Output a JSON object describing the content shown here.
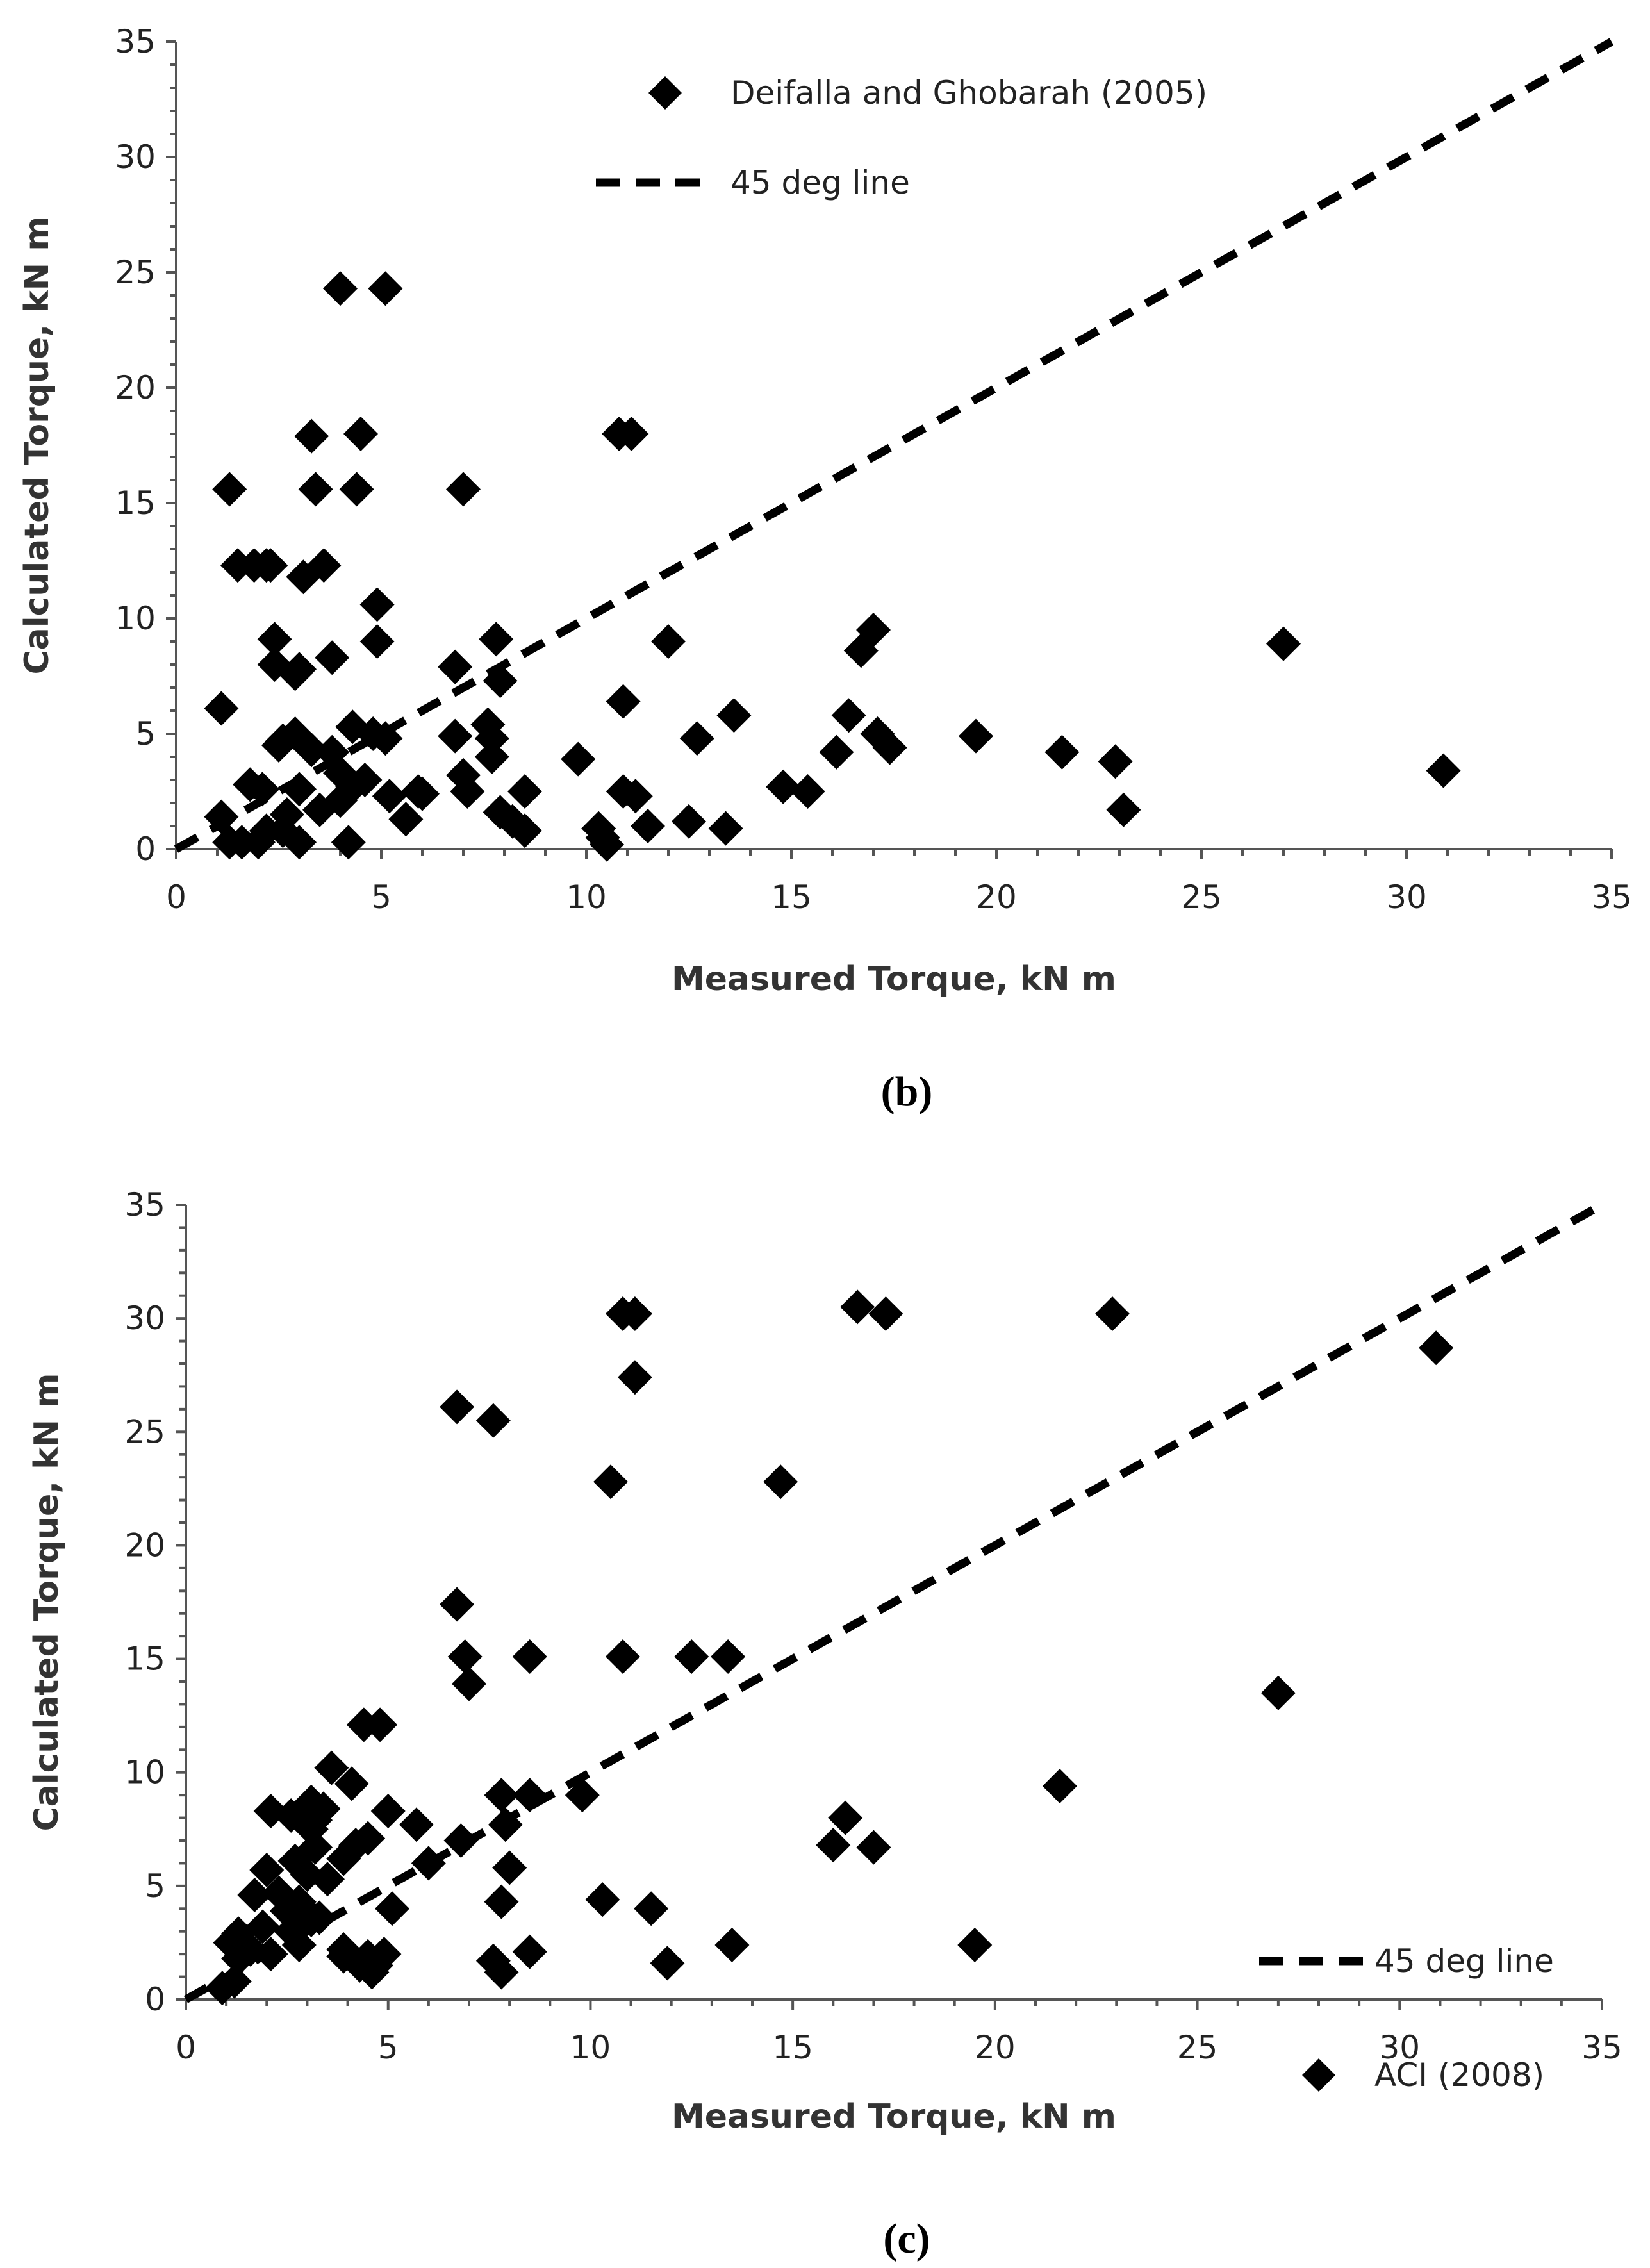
{
  "chart_data": [
    {
      "type": "scatter",
      "caption": "(b)",
      "title": "",
      "xlabel": "Measured Torque, kN m",
      "ylabel": "Calculated Torque, kN m",
      "xlim": [
        0,
        35
      ],
      "ylim": [
        0,
        35
      ],
      "x_ticks": [
        0,
        5,
        10,
        15,
        20,
        25,
        30,
        35
      ],
      "y_ticks": [
        0,
        5,
        10,
        15,
        20,
        25,
        30,
        35
      ],
      "legend_position": "top-center",
      "reference_line": {
        "name": "45 deg line",
        "x": [
          0,
          35
        ],
        "y": [
          0,
          35
        ]
      },
      "series": [
        {
          "name": "Deifalla and Ghobarah (2005)",
          "marker": "diamond",
          "x": [
            4.0,
            5.1,
            3.3,
            4.5,
            10.8,
            11.1,
            1.3,
            3.4,
            4.4,
            7.0,
            1.5,
            1.9,
            2.2,
            2.3,
            3.6,
            3.1,
            4.9,
            2.4,
            2.4,
            4.9,
            3.8,
            2.9,
            3.0,
            6.8,
            7.8,
            7.9,
            1.1,
            4.3,
            2.6,
            2.9,
            3.3,
            3.8,
            4.0,
            4.8,
            5.1,
            2.5,
            7.6,
            7.7,
            7.7,
            6.8,
            7.0,
            9.8,
            12.0,
            10.9,
            12.7,
            13.6,
            16.4,
            16.7,
            17.0,
            17.1,
            17.4,
            19.5,
            21.6,
            22.9,
            27.0,
            30.9,
            1.1,
            1.8,
            2.1,
            3.0,
            4.0,
            4.3,
            4.6,
            5.2,
            5.9,
            7.1,
            8.5,
            16.1,
            1.6,
            2.2,
            2.7,
            3.5,
            5.6,
            6.0,
            7.9,
            10.9,
            11.2,
            14.8,
            15.4,
            23.1,
            1.3,
            2.0,
            2.6,
            3.0,
            4.2,
            8.2,
            8.5,
            10.3,
            10.4,
            11.5,
            12.5,
            13.4,
            10.5
          ],
          "y": [
            24.3,
            24.3,
            17.9,
            18.0,
            18.0,
            18.0,
            15.6,
            15.6,
            15.6,
            15.6,
            12.3,
            12.3,
            12.3,
            12.3,
            12.3,
            11.8,
            10.6,
            9.1,
            8.0,
            9.0,
            8.3,
            7.6,
            7.8,
            7.9,
            9.1,
            7.3,
            1.4,
            5.3,
            4.7,
            5.0,
            4.3,
            4.2,
            3.3,
            5.0,
            4.8,
            4.5,
            5.4,
            4.8,
            4.0,
            4.9,
            3.2,
            3.9,
            9.0,
            6.4,
            4.8,
            5.8,
            5.8,
            8.6,
            9.5,
            5.0,
            4.4,
            4.9,
            4.2,
            3.8,
            8.9,
            3.4,
            6.1,
            2.8,
            2.6,
            2.6,
            2.1,
            2.7,
            3.0,
            2.3,
            2.5,
            2.5,
            2.5,
            4.2,
            0.3,
            0.8,
            1.5,
            1.7,
            1.3,
            2.4,
            1.6,
            2.5,
            2.3,
            2.7,
            2.5,
            1.7,
            0.3,
            0.3,
            0.8,
            0.3,
            0.3,
            1.2,
            0.8,
            0.9,
            0.5,
            1.0,
            1.2,
            0.9,
            0.2
          ]
        }
      ]
    },
    {
      "type": "scatter",
      "caption": "(c)",
      "title": "",
      "xlabel": "Measured Torque, kN m",
      "ylabel": "Calculated Torque, kN m",
      "xlim": [
        0,
        35
      ],
      "ylim": [
        0,
        35
      ],
      "x_ticks": [
        0,
        5,
        10,
        15,
        20,
        25,
        30,
        35
      ],
      "y_ticks": [
        0,
        5,
        10,
        15,
        20,
        25,
        30,
        35
      ],
      "legend_position": "bottom-right",
      "reference_line": {
        "name": "45 deg line",
        "x": [
          0,
          35
        ],
        "y": [
          0,
          35
        ]
      },
      "series": [
        {
          "name": "ACI (2008)",
          "marker": "diamond",
          "x": [
            10.8,
            11.1,
            16.6,
            17.3,
            22.9,
            30.9,
            6.7,
            7.6,
            11.1,
            10.5,
            14.7,
            6.7,
            6.9,
            7.0,
            8.5,
            10.8,
            12.5,
            13.4,
            27.0,
            4.4,
            4.8,
            3.6,
            4.1,
            3.1,
            3.4,
            2.1,
            2.6,
            2.9,
            3.2,
            3.1,
            5.0,
            5.7,
            6.0,
            6.8,
            7.9,
            8.5,
            9.8,
            3.2,
            3.9,
            4.2,
            4.5,
            2.7,
            3.0,
            3.5,
            2.0,
            2.3,
            2.8,
            1.7,
            2.5,
            3.1,
            1.3,
            1.9,
            2.6,
            16.3,
            16.0,
            17.0,
            21.6,
            7.8,
            8.0,
            7.8,
            10.3,
            11.5,
            1.1,
            1.3,
            1.6,
            2.1,
            2.9,
            3.3,
            3.9,
            4.5,
            5.1,
            4.6,
            4.9,
            7.6,
            7.8,
            8.5,
            11.9,
            13.5,
            19.5,
            2.8,
            4.3,
            3.9,
            4.7,
            0.9,
            1.2
          ],
          "y": [
            30.2,
            30.2,
            30.5,
            30.2,
            30.2,
            28.7,
            26.1,
            25.5,
            27.4,
            22.8,
            22.8,
            17.4,
            15.1,
            13.9,
            15.1,
            15.1,
            15.1,
            15.1,
            13.5,
            12.1,
            12.1,
            10.2,
            9.5,
            8.7,
            8.4,
            8.3,
            8.1,
            7.9,
            7.9,
            7.5,
            8.3,
            7.7,
            6.0,
            7.0,
            7.7,
            9.0,
            9.0,
            6.7,
            6.2,
            6.8,
            7.1,
            6.1,
            5.5,
            5.3,
            5.7,
            4.7,
            4.3,
            4.6,
            3.9,
            3.5,
            2.9,
            3.2,
            3.0,
            8.0,
            6.8,
            6.7,
            9.4,
            9.0,
            5.8,
            4.3,
            4.4,
            4.0,
            2.5,
            1.8,
            2.2,
            2.0,
            4.0,
            3.6,
            1.9,
            1.9,
            4.0,
            1.2,
            2.0,
            1.7,
            1.2,
            2.1,
            1.6,
            2.4,
            2.4,
            2.4,
            1.5,
            2.2,
            1.5,
            0.5,
            0.8
          ]
        }
      ]
    }
  ]
}
